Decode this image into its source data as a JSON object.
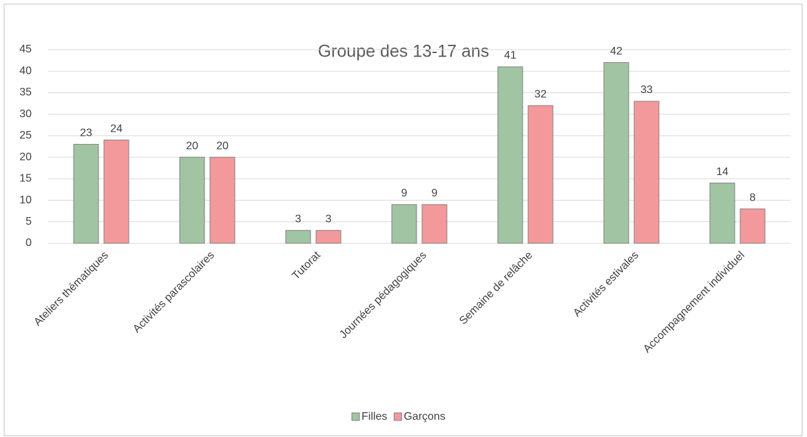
{
  "chart_data": {
    "type": "bar",
    "title": "Groupe des 13-17 ans",
    "categories": [
      "Ateliers thématiques",
      "Activités parascolaires",
      "Tutorat",
      "Journées pédagogiques",
      "Semaine de relâche",
      "Activités estivales",
      "Accompagnement individuel"
    ],
    "series": [
      {
        "name": "Filles",
        "color": "#a1c4a2",
        "values": [
          23,
          20,
          3,
          9,
          41,
          42,
          14
        ]
      },
      {
        "name": "Garçons",
        "color": "#f4999b",
        "values": [
          24,
          20,
          3,
          9,
          32,
          33,
          8
        ]
      }
    ],
    "ylim": [
      0,
      45
    ],
    "yticks": [
      0,
      5,
      10,
      15,
      20,
      25,
      30,
      35,
      40,
      45
    ],
    "grid": true,
    "legend": "bottom"
  }
}
